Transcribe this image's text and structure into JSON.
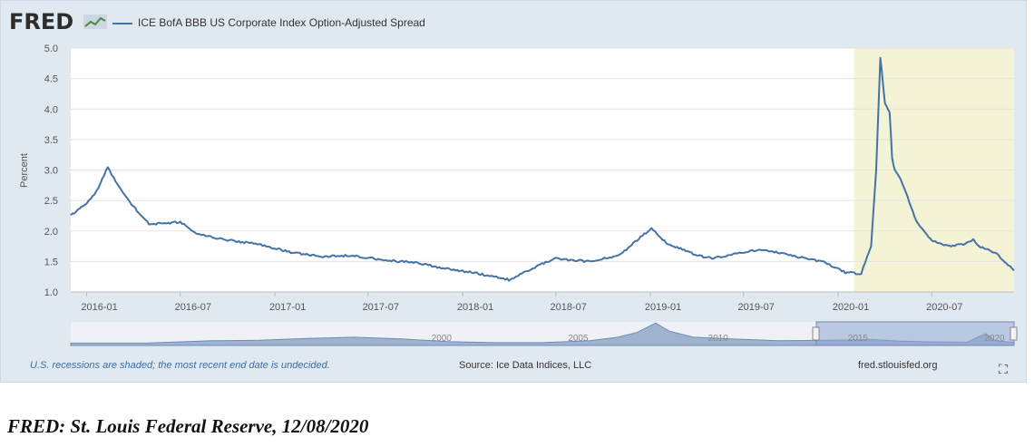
{
  "logo": {
    "text": "FRED",
    "icon": "fred-chart-icon"
  },
  "caption": "FRED: St. Louis Federal Reserve, 12/08/2020",
  "footer": {
    "note": "U.S. recessions are shaded; the most recent end date is undecided.",
    "source": "Source: Ice Data Indices, LLC",
    "url": "fred.stlouisfed.org",
    "fullscreen_icon": "expand-icon"
  },
  "colors": {
    "series": "#4572a7",
    "recession": "#f5f3d6",
    "panel": "#e1e9f0"
  },
  "chart_data": {
    "type": "line",
    "title": "",
    "ylabel": "Percent",
    "xlabel": "",
    "ylim": [
      1.0,
      5.0
    ],
    "y_ticks": [
      "1.0",
      "1.5",
      "2.0",
      "2.5",
      "3.0",
      "3.5",
      "4.0",
      "4.5",
      "5.0"
    ],
    "x_ticks": [
      "2016-01",
      "2016-07",
      "2017-01",
      "2017-07",
      "2018-01",
      "2018-07",
      "2019-01",
      "2019-07",
      "2020-01",
      "2020-07"
    ],
    "grid": true,
    "legend": "top-left",
    "recession_shading": {
      "start": "2020-02",
      "end": "open"
    },
    "series": [
      {
        "name": "ICE BofA BBB US Corporate Index Option-Adjusted Spread",
        "x": [
          "2015-12-01",
          "2016-01-01",
          "2016-01-20",
          "2016-02-11",
          "2016-03-01",
          "2016-04-01",
          "2016-05-01",
          "2016-06-01",
          "2016-07-01",
          "2016-08-01",
          "2016-10-01",
          "2016-12-01",
          "2017-02-01",
          "2017-04-01",
          "2017-06-01",
          "2017-08-01",
          "2017-10-01",
          "2017-12-01",
          "2018-02-01",
          "2018-04-01",
          "2018-06-01",
          "2018-07-01",
          "2018-09-01",
          "2018-11-01",
          "2018-12-20",
          "2019-01-03",
          "2019-02-01",
          "2019-04-01",
          "2019-05-01",
          "2019-06-01",
          "2019-08-01",
          "2019-10-01",
          "2019-12-01",
          "2020-01-15",
          "2020-02-15",
          "2020-03-05",
          "2020-03-15",
          "2020-03-23",
          "2020-04-01",
          "2020-04-10",
          "2020-04-15",
          "2020-04-20",
          "2020-05-01",
          "2020-05-15",
          "2020-06-01",
          "2020-06-15",
          "2020-07-01",
          "2020-08-01",
          "2020-09-01",
          "2020-09-20",
          "2020-10-01",
          "2020-11-01",
          "2020-12-08"
        ],
        "values": [
          2.25,
          2.45,
          2.65,
          3.05,
          2.75,
          2.4,
          2.12,
          2.12,
          2.15,
          1.95,
          1.85,
          1.78,
          1.65,
          1.58,
          1.6,
          1.52,
          1.48,
          1.38,
          1.3,
          1.2,
          1.45,
          1.55,
          1.5,
          1.6,
          1.95,
          2.05,
          1.8,
          1.6,
          1.55,
          1.6,
          1.7,
          1.6,
          1.5,
          1.32,
          1.3,
          1.75,
          3.0,
          4.85,
          4.1,
          3.95,
          3.2,
          3.0,
          2.85,
          2.55,
          2.15,
          2.0,
          1.85,
          1.75,
          1.78,
          1.85,
          1.75,
          1.65,
          1.35
        ]
      }
    ],
    "navigator": {
      "x_ticks": [
        "2000",
        "2005",
        "2010",
        "2015",
        "2020"
      ]
    }
  }
}
